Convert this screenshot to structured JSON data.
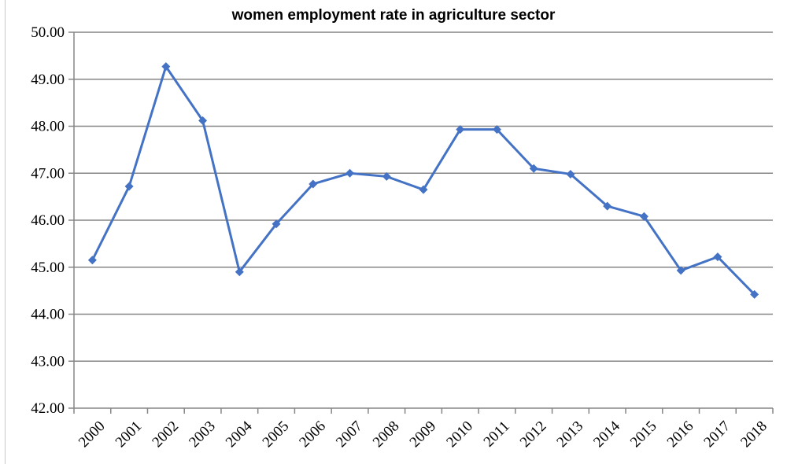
{
  "chart_data": {
    "type": "line",
    "title": "women employment rate in agriculture sector",
    "xlabel": "",
    "ylabel": "",
    "categories": [
      "2000",
      "2001",
      "2002",
      "2003",
      "2004",
      "2005",
      "2006",
      "2007",
      "2008",
      "2009",
      "2010",
      "2011",
      "2012",
      "2013",
      "2014",
      "2015",
      "2016",
      "2017",
      "2018"
    ],
    "series": [
      {
        "values": [
          45.15,
          46.72,
          49.27,
          48.12,
          44.9,
          45.92,
          46.77,
          47.0,
          46.93,
          46.65,
          47.93,
          47.93,
          47.1,
          46.98,
          46.3,
          46.08,
          44.93,
          45.22,
          44.42
        ]
      }
    ],
    "ylim": [
      42,
      50
    ],
    "yticks": [
      "42.00",
      "43.00",
      "44.00",
      "45.00",
      "46.00",
      "47.00",
      "48.00",
      "49.00",
      "50.00"
    ],
    "grid": true,
    "colors": {
      "line": "#4472C4",
      "grid": "#868686",
      "axis": "#868686"
    }
  }
}
